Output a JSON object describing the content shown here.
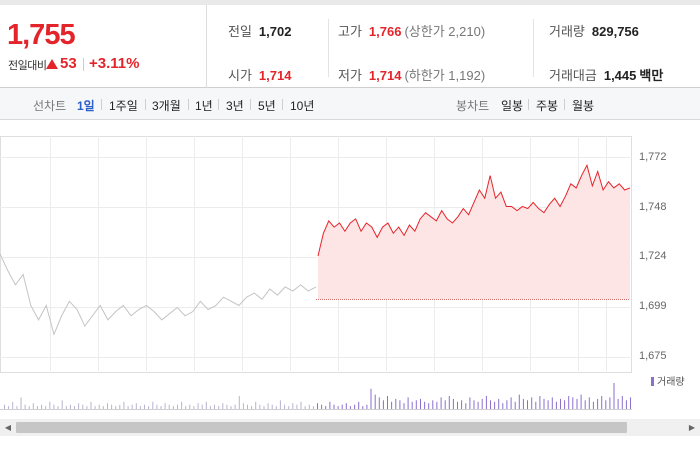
{
  "summary": {
    "price": "1,755",
    "change_label": "전일대비",
    "change_amount": "53",
    "change_rate": "+3.11%",
    "prev_close": {
      "label": "전일",
      "value": "1,702"
    },
    "open": {
      "label": "시가",
      "value": "1,714"
    },
    "high": {
      "label": "고가",
      "value": "1,766",
      "limit": "(상한가 2,210)"
    },
    "low": {
      "label": "저가",
      "value": "1,714",
      "limit": "(하한가 1,192)"
    },
    "volume": {
      "label": "거래량",
      "value": "829,756"
    },
    "amount": {
      "label": "거래대금",
      "value": "1,445",
      "unit": "백만"
    }
  },
  "line_chart_tabs": {
    "title": "선차트",
    "items": [
      "1일",
      "1주일",
      "3개월",
      "1년",
      "3년",
      "5년",
      "10년"
    ],
    "active": "1일"
  },
  "candle_chart_tabs": {
    "title": "봉차트",
    "items": [
      "일봉",
      "주봉",
      "월봉"
    ]
  },
  "colors": {
    "up": "#e4242b",
    "active_tab": "#2a5fc7",
    "previous_day_line": "#c4c4c4",
    "volume": "#8a6fcf"
  },
  "chart_data": {
    "type": "line",
    "y_ticks": [
      "1,772",
      "1,748",
      "1,724",
      "1,699",
      "1,675"
    ],
    "ylim": [
      1675,
      1772
    ],
    "grid": true,
    "previous_day": {
      "values": [
        1725,
        1717,
        1710,
        1715,
        1700,
        1693,
        1700,
        1686,
        1695,
        1702,
        1698,
        1690,
        1695,
        1700,
        1693,
        1697,
        1700,
        1695,
        1698,
        1700,
        1697,
        1693,
        1696,
        1699,
        1695,
        1697,
        1702,
        1698,
        1700,
        1704,
        1702,
        1700,
        1704,
        1706,
        1703,
        1708,
        1705,
        1709,
        1707,
        1710,
        1707,
        1709
      ]
    },
    "today": {
      "values": [
        1724,
        1735,
        1741,
        1738,
        1740,
        1736,
        1740,
        1742,
        1736,
        1740,
        1738,
        1733,
        1738,
        1740,
        1735,
        1738,
        1734,
        1739,
        1736,
        1742,
        1745,
        1743,
        1741,
        1746,
        1742,
        1740,
        1743,
        1747,
        1744,
        1750,
        1756,
        1752,
        1763,
        1752,
        1755,
        1748,
        1748,
        1746,
        1748,
        1747,
        1750,
        1747,
        1745,
        1749,
        1752,
        1748,
        1753,
        1759,
        1757,
        1763,
        1768,
        1758,
        1765,
        1756,
        1760,
        1757,
        1759,
        1756,
        1757
      ]
    },
    "volume_legend": "거래량",
    "volume": [
      3,
      2,
      5,
      2,
      8,
      3,
      2,
      4,
      2,
      3,
      2,
      5,
      3,
      2,
      6,
      2,
      3,
      2,
      4,
      3,
      2,
      5,
      2,
      3,
      2,
      4,
      3,
      2,
      3,
      5,
      2,
      3,
      4,
      2,
      3,
      2,
      5,
      3,
      2,
      4,
      3,
      2,
      3,
      5,
      2,
      3,
      2,
      4,
      3,
      5,
      2,
      3,
      2,
      4,
      3,
      2,
      3,
      9,
      4,
      3,
      2,
      5,
      3,
      2,
      4,
      3,
      2,
      6,
      3,
      2,
      4,
      3,
      5,
      2,
      3,
      2,
      4,
      3,
      2,
      5,
      3,
      2,
      3,
      4,
      2,
      3,
      5,
      2,
      3,
      14,
      10,
      8,
      6,
      9,
      5,
      7,
      6,
      4,
      8,
      5,
      6,
      7,
      5,
      4,
      6,
      5,
      8,
      6,
      9,
      7,
      5,
      6,
      4,
      8,
      6,
      5,
      7,
      9,
      6,
      5,
      7,
      4,
      6,
      8,
      5,
      10,
      7,
      6,
      8,
      5,
      9,
      7,
      6,
      8,
      5,
      7,
      6,
      9,
      8,
      7,
      10,
      6,
      8,
      5,
      7,
      9,
      6,
      8,
      18,
      7,
      9,
      6,
      8
    ]
  },
  "icons": {
    "scroll_left": "arrow-left-icon",
    "scroll_right": "arrow-right-icon"
  }
}
